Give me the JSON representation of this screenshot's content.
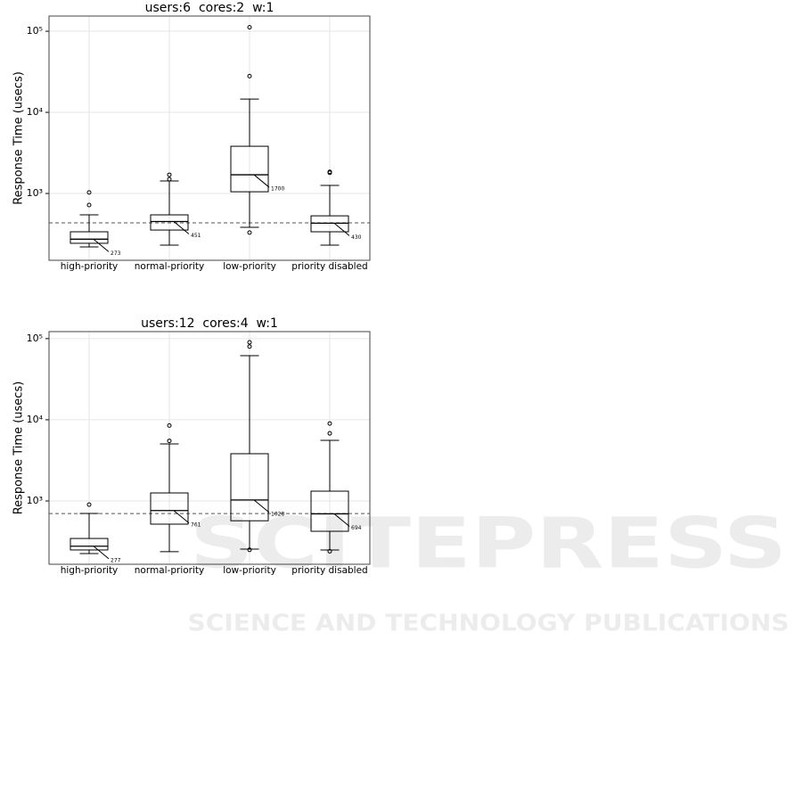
{
  "watermark": {
    "title": "SCITEPRESS",
    "subtitle": "SCIENCE AND TECHNOLOGY PUBLICATIONS"
  },
  "chart_data": [
    {
      "type": "box",
      "title": "users:6  cores:2  w:1",
      "y_label": "Response Time (usecs)",
      "categories": [
        "high-priority",
        "normal-priority",
        "low-priority",
        "priority disabled"
      ],
      "boxes": [
        {
          "whisker_low": 219,
          "q1": 243,
          "median": 273,
          "q3": 337,
          "whisker_high": 545,
          "outliers": [
            720,
            1030
          ]
        },
        {
          "whisker_low": 231,
          "q1": 354,
          "median": 451,
          "q3": 545,
          "whisker_high": 1425,
          "outliers": [
            1500,
            1700
          ]
        },
        {
          "whisker_low": 382,
          "q1": 1050,
          "median": 1700,
          "q3": 3820,
          "whisker_high": 14600,
          "outliers": [
            330,
            28000,
            112000
          ]
        },
        {
          "whisker_low": 231,
          "q1": 337,
          "median": 430,
          "q3": 530,
          "whisker_high": 1255,
          "outliers": [
            1800,
            1850
          ]
        }
      ],
      "reference_line": 434,
      "log_scale": true,
      "grid": true,
      "ylim": [
        150,
        154000
      ],
      "yticks": [
        {
          "value": 1000,
          "label": "10³"
        },
        {
          "value": 10000,
          "label": "10⁴"
        },
        {
          "value": 100000,
          "label": "10⁵"
        }
      ]
    },
    {
      "type": "box",
      "title": "users:12  cores:4  w:1",
      "y_label": "Response Time (usecs)",
      "categories": [
        "high-priority",
        "normal-priority",
        "low-priority",
        "priority disabled"
      ],
      "boxes": [
        {
          "whisker_low": 225,
          "q1": 249,
          "median": 277,
          "q3": 345,
          "whisker_high": 702,
          "outliers": [
            900
          ]
        },
        {
          "whisker_low": 237,
          "q1": 518,
          "median": 761,
          "q3": 1255,
          "whisker_high": 5050,
          "outliers": [
            5500,
            8500
          ]
        },
        {
          "whisker_low": 255,
          "q1": 570,
          "median": 1028,
          "q3": 3820,
          "whisker_high": 61600,
          "outliers": [
            250,
            80000,
            90000
          ]
        },
        {
          "whisker_low": 249,
          "q1": 423,
          "median": 694,
          "q3": 1320,
          "whisker_high": 5580,
          "outliers": [
            240,
            6800,
            9000
          ]
        }
      ],
      "reference_line": 700,
      "log_scale": true,
      "grid": true,
      "ylim": [
        166,
        122000
      ],
      "yticks": [
        {
          "value": 1000,
          "label": "10³"
        },
        {
          "value": 10000,
          "label": "10⁴"
        },
        {
          "value": 100000,
          "label": "10⁵"
        }
      ]
    }
  ]
}
